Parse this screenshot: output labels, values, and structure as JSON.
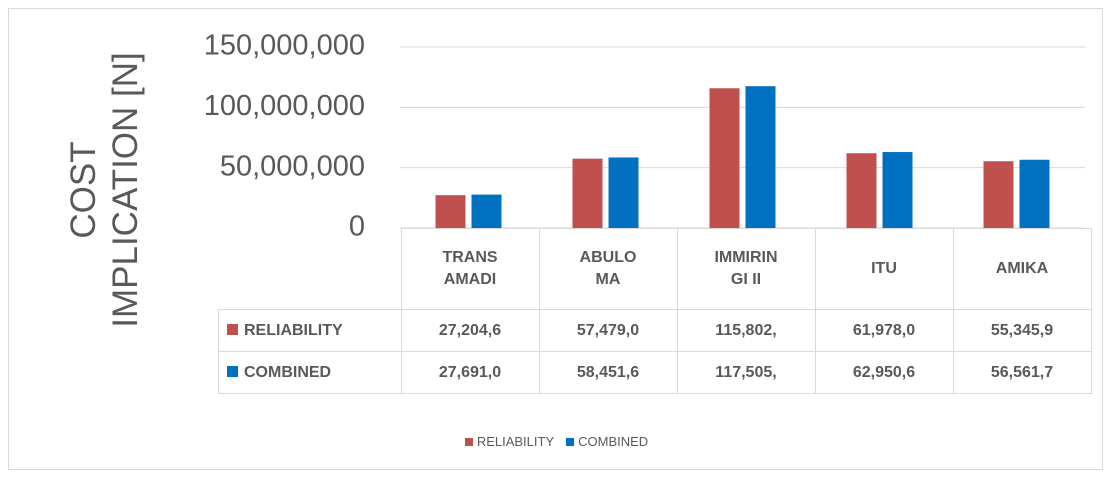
{
  "chart_data": {
    "type": "bar",
    "y_axis_label": "COST IMPLICATION [N]",
    "categories": [
      "TRANS AMADI",
      "ABULOMA",
      "IMMIRINGI II",
      "ITU",
      "AMIKA"
    ],
    "series": [
      {
        "name": "RELIABILITY",
        "color": "#c0504d",
        "values": [
          27204600,
          57479000,
          115802000,
          61978000,
          55345900
        ],
        "value_labels": [
          "27,204,6",
          "57,479,0",
          "115,802,",
          "61,978,0",
          "55,345,9"
        ]
      },
      {
        "name": "COMBINED",
        "color": "#0070c0",
        "values": [
          27691000,
          58451600,
          117505000,
          62950600,
          56561700
        ],
        "value_labels": [
          "27,691,0",
          "58,451,6",
          "117,505,",
          "62,950,6",
          "56,561,7"
        ]
      }
    ],
    "ylim": [
      0,
      150000000
    ],
    "yticks": [
      0,
      {
        "value": 50000000,
        "label": "50,000,000"
      },
      {
        "value": 100000000,
        "label": "100,000,000"
      },
      {
        "value": 150000000,
        "label": "150,000,000"
      }
    ],
    "grid": true,
    "legend": "bottom"
  }
}
